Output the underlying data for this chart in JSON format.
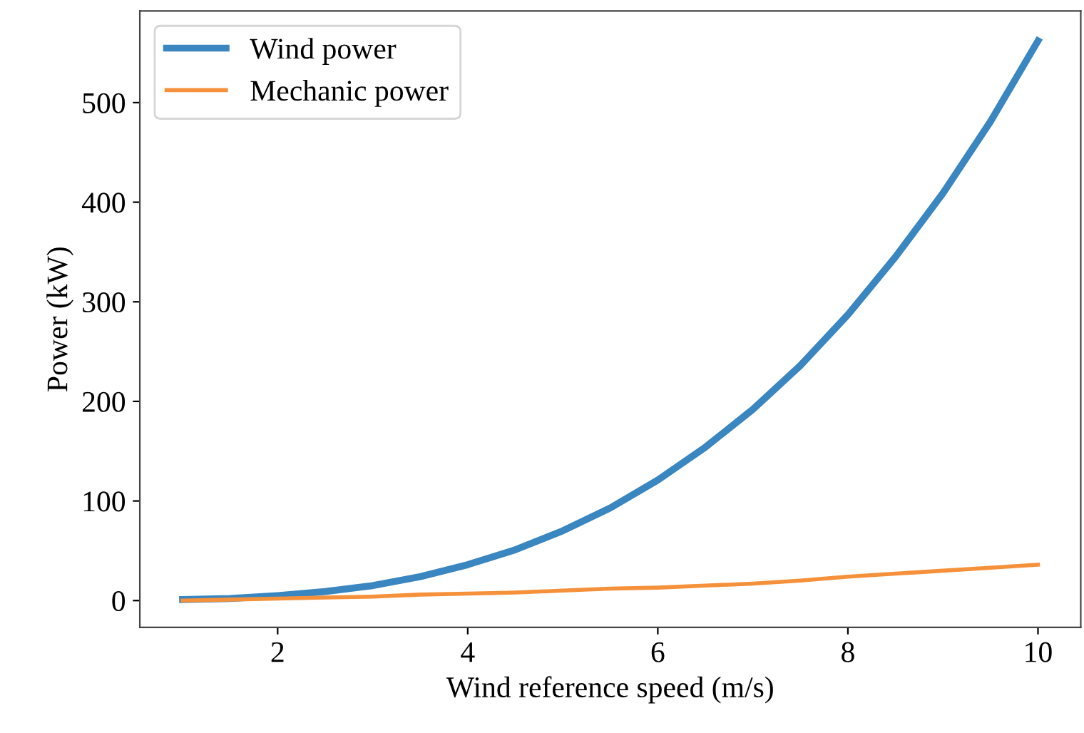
{
  "chart_data": {
    "type": "line",
    "xlabel": "Wind reference speed (m/s)",
    "ylabel": "Power (kW)",
    "x": [
      1,
      1.5,
      2,
      2.5,
      3,
      3.5,
      4,
      4.5,
      5,
      5.5,
      6,
      6.5,
      7,
      7.5,
      8,
      8.5,
      9,
      9.5,
      10
    ],
    "series": [
      {
        "name": "Wind power",
        "color": "#3a86c0",
        "values": [
          1,
          2,
          5,
          9,
          15,
          24,
          36,
          51,
          70,
          93,
          121,
          154,
          192,
          236,
          287,
          345,
          409,
          481,
          562
        ]
      },
      {
        "name": "Mechanic power",
        "color": "#f5913a",
        "values": [
          0,
          1,
          2,
          3,
          4,
          6,
          7,
          8,
          10,
          12,
          13,
          15,
          17,
          20,
          24,
          27,
          30,
          33,
          36
        ]
      }
    ],
    "xlim": [
      0.55,
      10.45
    ],
    "ylim": [
      -27,
      592
    ],
    "xticks": [
      2,
      4,
      6,
      8,
      10
    ],
    "yticks": [
      0,
      100,
      200,
      300,
      400,
      500
    ],
    "grid": false,
    "legend": "top left",
    "line_style": "solid",
    "marker": "none"
  }
}
